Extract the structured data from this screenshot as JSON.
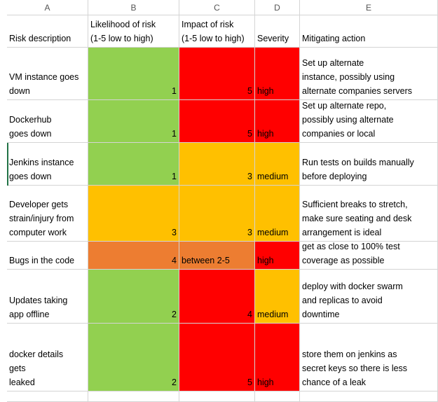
{
  "columns": [
    "A",
    "B",
    "C",
    "D",
    "E"
  ],
  "headers": {
    "risk": "Risk description",
    "likelihood": "Likelihood of risk\n(1-5 low to high)",
    "impact": "Impact of risk\n(1-5 low to high)",
    "severity": "Severity",
    "mitigation": "Mitigating action"
  },
  "rows": [
    {
      "risk": "VM instance goes\ndown",
      "likelihood": "1",
      "impact": "5",
      "severity": "high",
      "mitigation": "Set up alternate\ninstance, possibly using\nalternate companies servers"
    },
    {
      "risk": "Dockerhub\ngoes down",
      "likelihood": "1",
      "impact": "5",
      "severity": "high",
      "mitigation": "Set up alternate repo,\npossibly using alternate\ncompanies or local"
    },
    {
      "risk": "Jenkins instance\ngoes down",
      "likelihood": "1",
      "impact": "3",
      "severity": "medium",
      "mitigation": "Run tests on builds manually\nbefore deploying"
    },
    {
      "risk": "Developer gets\nstrain/injury from\ncomputer work",
      "likelihood": "3",
      "impact": "3",
      "severity": "medium",
      "mitigation": "Sufficient breaks to stretch,\nmake sure seating and desk\narrangement is ideal"
    },
    {
      "risk": "Bugs in the code",
      "likelihood": "4",
      "impact": "between 2-5",
      "severity": "high",
      "mitigation": "get as close to 100% test\ncoverage as possible"
    },
    {
      "risk": "Updates taking\napp offline",
      "likelihood": "2",
      "impact": "4",
      "severity": "medium",
      "mitigation": "deploy with docker swarm\nand replicas to avoid\ndowntime"
    },
    {
      "risk": "docker details\ngets\nleaked",
      "likelihood": "2",
      "impact": "5",
      "severity": "high",
      "mitigation": "store them on jenkins as\nsecret keys so there is less\nchance of a leak"
    }
  ],
  "colors": {
    "low": "#92d050",
    "high": "#ff0000",
    "medium": "#ffc000",
    "mid_high": "#ed7d31",
    "selection": "#217346"
  }
}
